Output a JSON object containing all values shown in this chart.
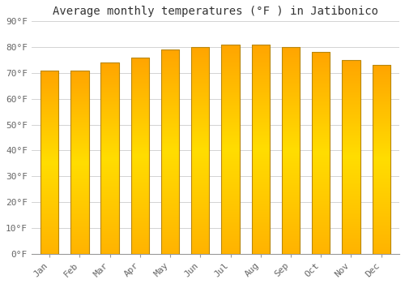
{
  "months": [
    "Jan",
    "Feb",
    "Mar",
    "Apr",
    "May",
    "Jun",
    "Jul",
    "Aug",
    "Sep",
    "Oct",
    "Nov",
    "Dec"
  ],
  "values": [
    71,
    71,
    74,
    76,
    79,
    80,
    81,
    81,
    80,
    78,
    75,
    73
  ],
  "title": "Average monthly temperatures (°F ) in Jatibonico",
  "ylim": [
    0,
    90
  ],
  "yticks": [
    0,
    10,
    20,
    30,
    40,
    50,
    60,
    70,
    80,
    90
  ],
  "ytick_labels": [
    "0°F",
    "10°F",
    "20°F",
    "30°F",
    "40°F",
    "50°F",
    "60°F",
    "70°F",
    "80°F",
    "90°F"
  ],
  "bar_color_bottom": "#FFB300",
  "bar_color_top": "#FF9900",
  "bar_color_mid": "#FFCC00",
  "bar_edge_color": "#B8860B",
  "background_color": "#FFFFFF",
  "grid_color": "#CCCCCC",
  "title_fontsize": 10,
  "tick_fontsize": 8,
  "font_family": "monospace",
  "bar_width": 0.6
}
